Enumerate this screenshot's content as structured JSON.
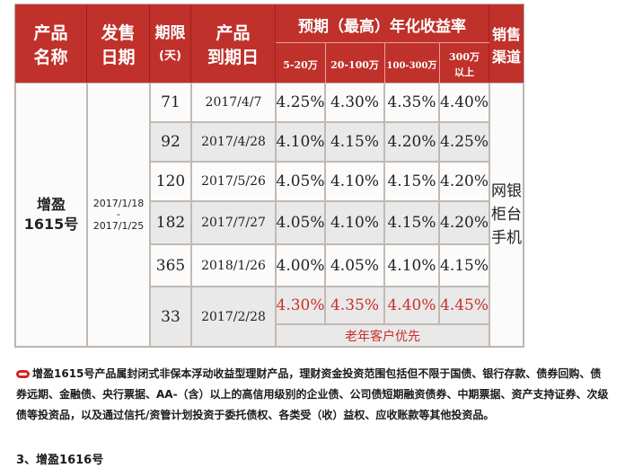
{
  "headers": {
    "product_name": [
      "产品",
      "名称"
    ],
    "issue_date": [
      "发售",
      "日期"
    ],
    "term": [
      "期限",
      "(天)"
    ],
    "maturity": [
      "产品",
      "到期日"
    ],
    "yield_title": "预期（最高）年化收益率",
    "tier1": "5-20万",
    "tier2": "20-100万",
    "tier3": "100-300万",
    "tier4": [
      "300万",
      "以上"
    ],
    "channel": [
      "销售",
      "渠道"
    ]
  },
  "product": {
    "name": [
      "增盈",
      "1615号"
    ],
    "dates": [
      "2017/1/18",
      "-",
      "2017/1/25"
    ],
    "channel": [
      "网银",
      "柜台",
      "手机"
    ]
  },
  "rows": [
    {
      "days": "71",
      "maturity": "2017/4/7",
      "r1": "4.25%",
      "r2": "4.30%",
      "r3": "4.35%",
      "r4": "4.40%"
    },
    {
      "days": "92",
      "maturity": "2017/4/28",
      "r1": "4.10%",
      "r2": "4.15%",
      "r3": "4.20%",
      "r4": "4.25%"
    },
    {
      "days": "120",
      "maturity": "2017/5/26",
      "r1": "4.05%",
      "r2": "4.10%",
      "r3": "4.15%",
      "r4": "4.20%"
    },
    {
      "days": "182",
      "maturity": "2017/7/27",
      "r1": "4.05%",
      "r2": "4.10%",
      "r3": "4.15%",
      "r4": "4.20%"
    },
    {
      "days": "365",
      "maturity": "2018/1/26",
      "r1": "4.00%",
      "r2": "4.05%",
      "r3": "4.10%",
      "r4": "4.15%"
    },
    {
      "days": "33",
      "maturity": "2017/2/28",
      "r1": "4.30%",
      "r2": "4.35%",
      "r3": "4.40%",
      "r4": "4.45%"
    }
  ],
  "senior_note": "老年客户优先",
  "description": "增盈1615号产品属封闭式非保本浮动收益型理财产品，理财资金投资范围包括但不限于国债、银行存款、债券回购、债券远期、金融债、央行票据、AA-（含）以上的高信用级别的企业债、公司债短期融资债券、中期票据、资产支持证券、次级债等投资品，以及通过信托/资管计划投资于委托债权、各类受（收）益权、应收账款等其他投资品。",
  "section_title": "3、增盈1616号",
  "colors": {
    "header": "#c0312b",
    "highlight": "#c8302a",
    "row_grey": "#e9e9e9"
  }
}
